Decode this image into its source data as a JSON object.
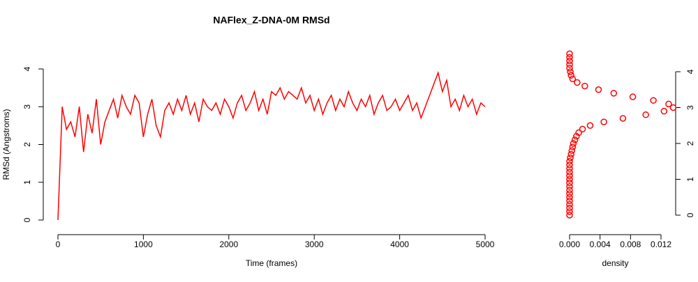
{
  "chart_data": [
    {
      "type": "line",
      "title": "NAFlex_Z-DNA-0M RMSd",
      "x_label": "Time (frames)",
      "y_label": "RMSd (Angstroms)",
      "x": [
        0,
        50,
        100,
        150,
        200,
        250,
        300,
        350,
        400,
        450,
        500,
        550,
        600,
        650,
        700,
        750,
        800,
        850,
        900,
        950,
        1000,
        1050,
        1100,
        1150,
        1200,
        1250,
        1300,
        1350,
        1400,
        1450,
        1500,
        1550,
        1600,
        1650,
        1700,
        1750,
        1800,
        1850,
        1900,
        1950,
        2000,
        2050,
        2100,
        2150,
        2200,
        2250,
        2300,
        2350,
        2400,
        2450,
        2500,
        2550,
        2600,
        2650,
        2700,
        2750,
        2800,
        2850,
        2900,
        2950,
        3000,
        3050,
        3100,
        3150,
        3200,
        3250,
        3300,
        3350,
        3400,
        3450,
        3500,
        3550,
        3600,
        3650,
        3700,
        3750,
        3800,
        3850,
        3900,
        3950,
        4000,
        4050,
        4100,
        4150,
        4200,
        4250,
        4300,
        4350,
        4400,
        4450,
        4500,
        4550,
        4600,
        4650,
        4700,
        4750,
        4800,
        4850,
        4900,
        4950,
        5000
      ],
      "series": [
        {
          "name": "RMSd",
          "color": "#ff0000",
          "values": [
            0.0,
            3.0,
            2.4,
            2.6,
            2.2,
            3.0,
            1.8,
            2.8,
            2.3,
            3.2,
            2.0,
            2.6,
            2.9,
            3.2,
            2.7,
            3.3,
            3.0,
            2.8,
            3.3,
            3.1,
            2.2,
            2.8,
            3.2,
            2.5,
            2.2,
            2.9,
            3.1,
            2.8,
            3.2,
            2.9,
            3.3,
            2.8,
            3.1,
            2.6,
            3.2,
            3.0,
            2.9,
            3.1,
            2.8,
            3.2,
            3.0,
            2.7,
            3.1,
            3.3,
            2.9,
            3.1,
            3.4,
            2.9,
            3.2,
            2.8,
            3.4,
            3.3,
            3.5,
            3.2,
            3.4,
            3.3,
            3.2,
            3.5,
            3.1,
            3.3,
            2.9,
            3.2,
            2.8,
            3.1,
            3.3,
            2.9,
            3.2,
            3.0,
            3.4,
            3.1,
            2.9,
            3.2,
            3.0,
            3.3,
            2.8,
            3.1,
            3.3,
            2.9,
            3.0,
            3.2,
            2.9,
            3.1,
            3.3,
            2.9,
            3.1,
            2.7,
            3.0,
            3.3,
            3.6,
            3.9,
            3.4,
            3.7,
            3.0,
            3.2,
            2.9,
            3.3,
            3.0,
            3.2,
            2.8,
            3.1,
            3.0
          ]
        }
      ],
      "xlim": [
        0,
        5000
      ],
      "xticks": [
        0,
        1000,
        2000,
        3000,
        4000,
        5000
      ],
      "ylim": [
        0,
        4
      ],
      "yticks": [
        0,
        1,
        2,
        3,
        4
      ]
    },
    {
      "type": "scatter",
      "x_label": "density",
      "y_axis_side": "right",
      "x": [
        0,
        0,
        0,
        0,
        0,
        0,
        0,
        0,
        0,
        0,
        0,
        0,
        0,
        0,
        0,
        0,
        0.0001,
        0.0002,
        0.0003,
        0.0004,
        0.0005,
        0.0007,
        0.0009,
        0.0012,
        0.0017,
        0.0027,
        0.0045,
        0.007,
        0.01,
        0.0124,
        0.0136,
        0.013,
        0.011,
        0.0083,
        0.0058,
        0.0038,
        0.002,
        0.001,
        0.0004,
        0.0002,
        0.0001,
        0,
        0,
        0,
        0,
        0
      ],
      "series": [
        {
          "name": "density",
          "color": "#ff0000",
          "values": [
            0,
            0.1,
            0.2,
            0.3,
            0.4,
            0.5,
            0.6,
            0.7,
            0.8,
            0.9,
            1,
            1.1,
            1.2,
            1.3,
            1.4,
            1.5,
            1.6,
            1.7,
            1.8,
            1.9,
            2,
            2.1,
            2.2,
            2.3,
            2.4,
            2.5,
            2.6,
            2.7,
            2.8,
            2.9,
            3,
            3.1,
            3.2,
            3.3,
            3.4,
            3.5,
            3.6,
            3.7,
            3.8,
            3.9,
            4,
            4.1,
            4.2,
            4.3,
            4.4,
            4.5
          ]
        }
      ],
      "xlim": [
        0,
        0.012
      ],
      "xticks": [
        {
          "value": 0,
          "label": "0.000"
        },
        {
          "value": 0.004,
          "label": "0.004"
        },
        {
          "value": 0.008,
          "label": "0.008"
        },
        {
          "value": 0.012,
          "label": "0.012"
        }
      ],
      "ylim": [
        0,
        4
      ],
      "yticks": [
        0,
        1,
        2,
        3,
        4
      ]
    }
  ]
}
